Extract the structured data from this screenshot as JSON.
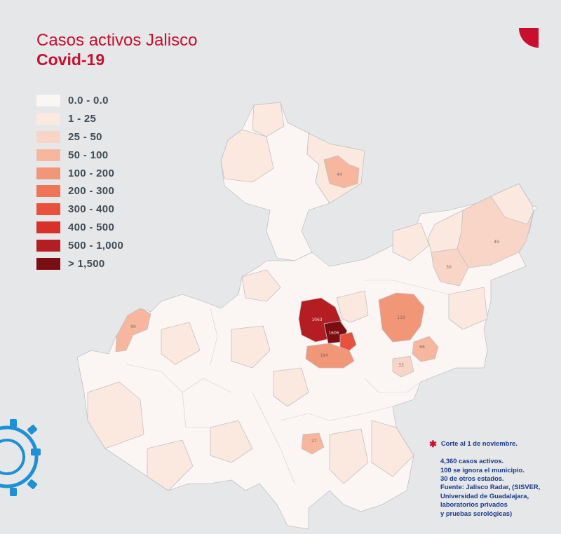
{
  "title": {
    "line1": "Casos activos Jalisco",
    "line2": "Covid-19"
  },
  "legend": [
    {
      "label": "0.0 - 0.0",
      "color": "#fbf6f3"
    },
    {
      "label": "1 - 25",
      "color": "#fbe8df"
    },
    {
      "label": "25 - 50",
      "color": "#f8d5c6"
    },
    {
      "label": "50 - 100",
      "color": "#f6b79e"
    },
    {
      "label": "100 - 200",
      "color": "#f29678"
    },
    {
      "label": "200 - 300",
      "color": "#ee7656"
    },
    {
      "label": "300 - 400",
      "color": "#e8513c"
    },
    {
      "label": "400 - 500",
      "color": "#d6322a"
    },
    {
      "label": "500 - 1,000",
      "color": "#b41e22"
    },
    {
      "label": "> 1,500",
      "color": "#7a0e12"
    }
  ],
  "map_labels": [
    {
      "text": "1063",
      "region": "guadalajara-zapopan"
    },
    {
      "text": "1606",
      "region": "guadalajara"
    },
    {
      "text": "184",
      "region": "tlajomulco"
    },
    {
      "text": "119",
      "region": "tepatitlan"
    },
    {
      "text": "66",
      "region": "arandas"
    },
    {
      "text": "49",
      "region": "lagos-de-moreno"
    },
    {
      "text": "44",
      "region": "colotlan"
    },
    {
      "text": "30",
      "region": "san-juan-de-los-lagos"
    },
    {
      "text": "90",
      "region": "puerto-vallarta"
    },
    {
      "text": "27",
      "region": "ciudad-guzman"
    },
    {
      "text": "33",
      "region": "la-barca"
    }
  ],
  "notes": {
    "cutoff": "Corte al 1 de noviembre.",
    "lines": [
      "4,360 casos activos.",
      "100 se ignora el municipio.",
      "30 de otros estados.",
      "Fuente: Jalisco Radar, (SISVER,",
      "Universidad de Guadalajara,",
      "laboratorios privados",
      "y pruebas serológicas)"
    ]
  },
  "colors": {
    "accent": "#c8102e",
    "notes_text": "#163a8a",
    "map_stroke": "#bfc2c6",
    "gear": "#1e90d6"
  }
}
